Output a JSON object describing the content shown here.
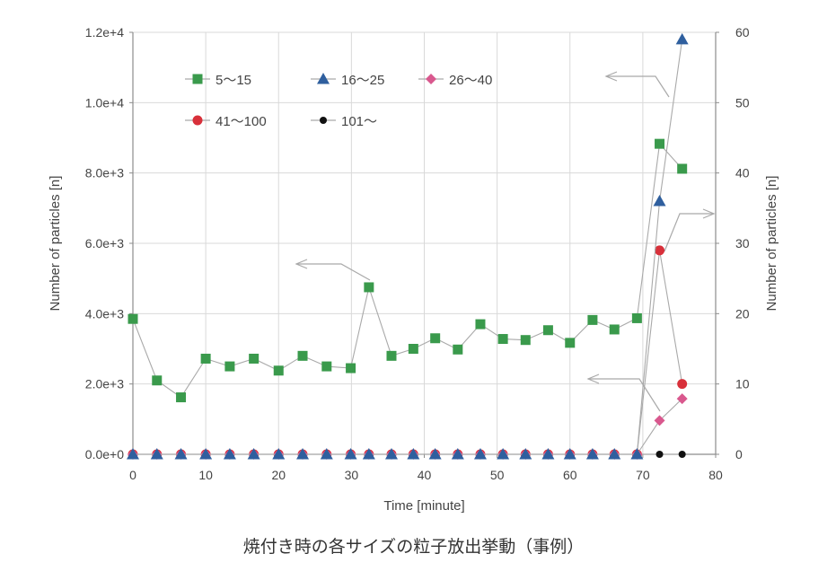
{
  "caption": "焼付き時の各サイズの粒子放出挙動（事例）",
  "colors": {
    "5~15": "#3a9a4c",
    "16~25": "#2f5f9e",
    "26~40": "#d9588e",
    "41~100": "#d8303a",
    "101~": "#111111",
    "grid": "#d9d9d9",
    "axis": "#8c8c8c",
    "line": "#a9a9a9"
  },
  "chart_data": {
    "type": "line",
    "title": "",
    "xlabel": "Time [minute]",
    "ylabel": "Number of particles [n]",
    "y2label": "Number of particles [n]",
    "xlim": [
      0,
      80
    ],
    "ylim": [
      0,
      12000
    ],
    "y2lim": [
      0,
      60
    ],
    "xticks": [
      "0",
      "10",
      "20",
      "30",
      "40",
      "50",
      "60",
      "70",
      "80"
    ],
    "yticks": [
      "0.0e+0",
      "2.0e+3",
      "4.0e+3",
      "6.0e+3",
      "8.0e+3",
      "1.0e+4",
      "1.2e+4"
    ],
    "y2ticks": [
      "0",
      "10",
      "20",
      "30",
      "40",
      "50",
      "60"
    ],
    "grid": true,
    "legend_position": "top-left inside",
    "series": [
      {
        "name": "5～15",
        "axis": "left",
        "marker": "square",
        "x": [
          0,
          3.3,
          6.6,
          10,
          13.3,
          16.6,
          20,
          23.3,
          26.6,
          29.9,
          32.4,
          35.5,
          38.5,
          41.5,
          44.6,
          47.7,
          50.8,
          53.9,
          57,
          60,
          63.1,
          66.1,
          69.2,
          72.3,
          75.4
        ],
        "y": [
          3850,
          2100,
          1620,
          2720,
          2500,
          2720,
          2380,
          2800,
          2500,
          2450,
          4750,
          2800,
          3000,
          3300,
          2980,
          3700,
          3280,
          3250,
          3530,
          3170,
          3820,
          3550,
          3870,
          8830,
          8120
        ]
      },
      {
        "name": "16～25",
        "axis": "right",
        "marker": "triangle",
        "x": [
          0,
          3.3,
          6.6,
          10,
          13.3,
          16.6,
          20,
          23.3,
          26.6,
          29.9,
          32.4,
          35.5,
          38.5,
          41.5,
          44.6,
          47.7,
          50.8,
          53.9,
          57,
          60,
          63.1,
          66.1,
          69.2,
          72.3,
          75.4
        ],
        "y": [
          0,
          0,
          0,
          0,
          0,
          0,
          0,
          0,
          0,
          0,
          0,
          0,
          0,
          0,
          0,
          0,
          0,
          0,
          0,
          0,
          0,
          0,
          0,
          36,
          59
        ]
      },
      {
        "name": "26～40",
        "axis": "right",
        "marker": "diamond",
        "x": [
          0,
          3.3,
          6.6,
          10,
          13.3,
          16.6,
          20,
          23.3,
          26.6,
          29.9,
          32.4,
          35.5,
          38.5,
          41.5,
          44.6,
          47.7,
          50.8,
          53.9,
          57,
          60,
          63.1,
          66.1,
          69.2,
          72.3,
          75.4
        ],
        "y": [
          0,
          0,
          0,
          0,
          0,
          0,
          0,
          0,
          0,
          0,
          0,
          0,
          0,
          0,
          0,
          0,
          0,
          0,
          0,
          0,
          0,
          0,
          0,
          4.8,
          7.9
        ]
      },
      {
        "name": "41～100",
        "axis": "right",
        "marker": "circle",
        "x": [
          0,
          3.3,
          6.6,
          10,
          13.3,
          16.6,
          20,
          23.3,
          26.6,
          29.9,
          32.4,
          35.5,
          38.5,
          41.5,
          44.6,
          47.7,
          50.8,
          53.9,
          57,
          60,
          63.1,
          66.1,
          69.2,
          72.3,
          75.4
        ],
        "y": [
          0,
          0,
          0,
          0,
          0,
          0,
          0,
          0,
          0,
          0,
          0,
          0,
          0,
          0,
          0,
          0,
          0,
          0,
          0,
          0,
          0,
          0,
          0,
          29,
          10
        ]
      },
      {
        "name": "101～",
        "axis": "right",
        "marker": "dot",
        "x": [
          0,
          3.3,
          6.6,
          10,
          13.3,
          16.6,
          20,
          23.3,
          26.6,
          29.9,
          32.4,
          35.5,
          38.5,
          41.5,
          44.6,
          47.7,
          50.8,
          53.9,
          57,
          60,
          63.1,
          66.1,
          69.2,
          72.3,
          75.4
        ],
        "y": [
          0,
          0,
          0,
          0,
          0,
          0,
          0,
          0,
          0,
          0,
          0,
          0,
          0,
          0,
          0,
          0,
          0,
          0,
          0,
          0,
          0,
          0,
          0,
          0,
          0
        ]
      }
    ]
  }
}
